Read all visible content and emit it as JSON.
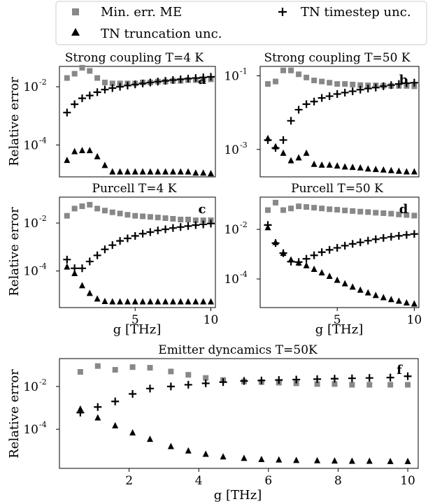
{
  "legend": {
    "entries": [
      {
        "label": "Min. err. ME",
        "marker": "square",
        "color": "#888888"
      },
      {
        "label": "TN timestep unc.",
        "marker": "plus",
        "color": "#000000"
      },
      {
        "label": "TN truncation unc.",
        "marker": "triangle",
        "color": "#000000"
      }
    ]
  },
  "chart_data": [
    {
      "type": "scatter",
      "panel_label": "a",
      "title": "Strong coupling T=4 K",
      "xlabel": "",
      "ylabel": "Relative error",
      "yscale": "log",
      "xlim": [
        0,
        10.3
      ],
      "ylim": [
        8e-06,
        0.05
      ],
      "xticks": [],
      "yticks": [
        {
          "v": 0.0001,
          "exp": "-4"
        },
        {
          "v": 0.01,
          "exp": "-2"
        }
      ],
      "x": [
        0.5,
        1.0,
        1.5,
        2.0,
        2.5,
        3.0,
        3.5,
        4.0,
        4.5,
        5.0,
        5.5,
        6.0,
        6.5,
        7.0,
        7.5,
        8.0,
        8.5,
        9.0,
        9.5,
        10.0
      ],
      "series": [
        {
          "name": "Min. err. ME",
          "marker": "square",
          "color": "#888888",
          "values": [
            0.02,
            0.028,
            0.045,
            0.035,
            0.02,
            0.014,
            0.013,
            0.013,
            0.013,
            0.013,
            0.014,
            0.014,
            0.015,
            0.015,
            0.016,
            0.016,
            0.017,
            0.017,
            0.017,
            0.018
          ]
        },
        {
          "name": "TN timestep unc.",
          "marker": "plus",
          "color": "#000000",
          "values": [
            0.0013,
            0.0025,
            0.004,
            0.005,
            0.0065,
            0.008,
            0.009,
            0.01,
            0.011,
            0.012,
            0.013,
            0.014,
            0.015,
            0.016,
            0.017,
            0.018,
            0.019,
            0.02,
            0.021,
            0.022
          ]
        },
        {
          "name": "TN truncation unc.",
          "marker": "triangle",
          "color": "#000000",
          "values": [
            3e-05,
            6e-05,
            6.5e-05,
            6.5e-05,
            4e-05,
            2e-05,
            1.2e-05,
            1.2e-05,
            1.2e-05,
            1.2e-05,
            1.2e-05,
            1.2e-05,
            1.2e-05,
            1.2e-05,
            1.2e-05,
            1.2e-05,
            1.2e-05,
            1.1e-05,
            1.1e-05,
            1.05e-05
          ]
        }
      ]
    },
    {
      "type": "scatter",
      "panel_label": "b",
      "title": "Strong coupling T=50 K",
      "xlabel": "",
      "ylabel": "",
      "yscale": "log",
      "xlim": [
        0,
        10.3
      ],
      "ylim": [
        0.00018,
        0.18
      ],
      "xticks": [],
      "yticks": [
        {
          "v": 0.001,
          "exp": "-3"
        },
        {
          "v": 0.1,
          "exp": "-1"
        }
      ],
      "x": [
        0.5,
        1.0,
        1.5,
        2.0,
        2.5,
        3.0,
        3.5,
        4.0,
        4.5,
        5.0,
        5.5,
        6.0,
        6.5,
        7.0,
        7.5,
        8.0,
        8.5,
        9.0,
        9.5,
        10.0
      ],
      "series": [
        {
          "name": "Min. err. ME",
          "marker": "square",
          "color": "#888888",
          "values": [
            0.06,
            0.07,
            0.14,
            0.14,
            0.11,
            0.09,
            0.075,
            0.07,
            0.065,
            0.06,
            0.06,
            0.058,
            0.056,
            0.055,
            0.055,
            0.054,
            0.053,
            0.053,
            0.053,
            0.052
          ]
        },
        {
          "name": "TN timestep unc.",
          "marker": "plus",
          "color": "#000000",
          "values": [
            0.0018,
            0.0011,
            0.0018,
            0.006,
            0.012,
            0.017,
            0.02,
            0.025,
            0.028,
            0.032,
            0.035,
            0.038,
            0.042,
            0.045,
            0.048,
            0.052,
            0.056,
            0.06,
            0.063,
            0.065
          ]
        },
        {
          "name": "TN truncation unc.",
          "marker": "triangle",
          "color": "#000000",
          "values": [
            0.002,
            0.0012,
            0.0008,
            0.0005,
            0.0006,
            0.0008,
            0.0004,
            0.00038,
            0.00038,
            0.00036,
            0.00034,
            0.00033,
            0.00032,
            0.0003,
            0.00029,
            0.00028,
            0.00027,
            0.00026,
            0.00025,
            0.00025
          ]
        }
      ]
    },
    {
      "type": "scatter",
      "panel_label": "c",
      "title": "Purcell T=4 K",
      "xlabel": "g [THz]",
      "ylabel": "Relative error",
      "yscale": "log",
      "xlim": [
        0,
        10.3
      ],
      "ylim": [
        3e-06,
        0.12
      ],
      "xticks": [
        {
          "v": 5,
          "label": "5"
        },
        {
          "v": 10,
          "label": "10"
        }
      ],
      "yticks": [
        {
          "v": 0.0001,
          "exp": "-4"
        },
        {
          "v": 0.01,
          "exp": "-2"
        }
      ],
      "x": [
        0.5,
        1.0,
        1.5,
        2.0,
        2.5,
        3.0,
        3.5,
        4.0,
        4.5,
        5.0,
        5.5,
        6.0,
        6.5,
        7.0,
        7.5,
        8.0,
        8.5,
        9.0,
        9.5,
        10.0
      ],
      "series": [
        {
          "name": "Min. err. ME",
          "marker": "square",
          "color": "#888888",
          "values": [
            0.02,
            0.04,
            0.05,
            0.058,
            0.04,
            0.033,
            0.028,
            0.025,
            0.022,
            0.02,
            0.019,
            0.018,
            0.017,
            0.016,
            0.015,
            0.014,
            0.014,
            0.013,
            0.013,
            0.013
          ]
        },
        {
          "name": "TN timestep unc.",
          "marker": "plus",
          "color": "#000000",
          "values": [
            0.0003,
            0.00013,
            0.00013,
            0.00025,
            0.00045,
            0.0008,
            0.0012,
            0.0018,
            0.0023,
            0.0029,
            0.0036,
            0.0042,
            0.0049,
            0.0055,
            0.0062,
            0.0068,
            0.0075,
            0.0082,
            0.0088,
            0.0095
          ]
        },
        {
          "name": "TN truncation unc.",
          "marker": "triangle",
          "color": "#000000",
          "values": [
            0.00015,
            8e-05,
            2.5e-05,
            1.2e-05,
            7e-06,
            5.5e-06,
            5.3e-06,
            5.3e-06,
            5.3e-06,
            5.3e-06,
            5.3e-06,
            5.3e-06,
            5.3e-06,
            5.3e-06,
            5.3e-06,
            5.3e-06,
            5.3e-06,
            5.3e-06,
            5.3e-06,
            5.3e-06
          ]
        }
      ]
    },
    {
      "type": "scatter",
      "panel_label": "d",
      "title": "Purcell T=50 K",
      "xlabel": "g [THz]",
      "ylabel": "",
      "yscale": "log",
      "xlim": [
        0,
        10.3
      ],
      "ylim": [
        7e-06,
        0.2
      ],
      "xticks": [
        {
          "v": 5,
          "label": "5"
        },
        {
          "v": 10,
          "label": "10"
        }
      ],
      "yticks": [
        {
          "v": 0.0001,
          "exp": "-4"
        },
        {
          "v": 0.01,
          "exp": "-2"
        }
      ],
      "x": [
        0.5,
        1.0,
        1.5,
        2.0,
        2.5,
        3.0,
        3.5,
        4.0,
        4.5,
        5.0,
        5.5,
        6.0,
        6.5,
        7.0,
        7.5,
        8.0,
        8.5,
        9.0,
        9.5,
        10.0
      ],
      "series": [
        {
          "name": "Min. err. ME",
          "marker": "square",
          "color": "#888888",
          "values": [
            0.06,
            0.12,
            0.06,
            0.07,
            0.085,
            0.08,
            0.075,
            0.07,
            0.065,
            0.062,
            0.058,
            0.055,
            0.052,
            0.05,
            0.047,
            0.045,
            0.043,
            0.04,
            0.038,
            0.036
          ]
        },
        {
          "name": "TN timestep unc.",
          "marker": "plus",
          "color": "#000000",
          "values": [
            0.015,
            0.0028,
            0.0011,
            0.0005,
            0.00048,
            0.00065,
            0.0009,
            0.0012,
            0.0015,
            0.0018,
            0.0022,
            0.0026,
            0.003,
            0.0035,
            0.004,
            0.0045,
            0.005,
            0.0055,
            0.006,
            0.0065
          ]
        },
        {
          "name": "TN truncation unc.",
          "marker": "triangle",
          "color": "#000000",
          "values": [
            0.012,
            0.003,
            0.0011,
            0.0006,
            0.00045,
            0.00035,
            0.00025,
            0.00018,
            0.00013,
            9e-05,
            6.5e-05,
            4.8e-05,
            3.6e-05,
            2.8e-05,
            2.2e-05,
            1.8e-05,
            1.5e-05,
            1.3e-05,
            1.1e-05,
            1e-05
          ]
        }
      ]
    },
    {
      "type": "scatter",
      "panel_label": "f",
      "title": "Emitter dyncamics T=50K",
      "xlabel": "g [THz]",
      "ylabel": "Relative error",
      "yscale": "log",
      "xlim": [
        0,
        10.3
      ],
      "ylim": [
        1.5e-06,
        0.2
      ],
      "xticks": [
        {
          "v": 2,
          "label": "2"
        },
        {
          "v": 4,
          "label": "4"
        },
        {
          "v": 6,
          "label": "6"
        },
        {
          "v": 8,
          "label": "8"
        },
        {
          "v": 10,
          "label": "10"
        }
      ],
      "yticks": [
        {
          "v": 0.0001,
          "exp": "-4"
        },
        {
          "v": 0.01,
          "exp": "-2"
        }
      ],
      "x": [
        0.6,
        1.1,
        1.6,
        2.1,
        2.6,
        3.2,
        3.7,
        4.2,
        4.7,
        5.3,
        5.8,
        6.3,
        6.8,
        7.4,
        7.9,
        8.4,
        8.9,
        9.5,
        10.0
      ],
      "series": [
        {
          "name": "Min. err. ME",
          "marker": "square",
          "color": "#888888",
          "values": [
            0.048,
            0.09,
            0.06,
            0.08,
            0.075,
            0.05,
            0.035,
            0.025,
            0.02,
            0.017,
            0.016,
            0.015,
            0.014,
            0.013,
            0.013,
            0.012,
            0.012,
            0.012,
            0.012
          ]
        },
        {
          "name": "TN timestep unc.",
          "marker": "plus",
          "color": "#000000",
          "values": [
            0.0006,
            0.0011,
            0.002,
            0.0045,
            0.008,
            0.01,
            0.012,
            0.014,
            0.016,
            0.018,
            0.019,
            0.02,
            0.021,
            0.022,
            0.023,
            0.024,
            0.025,
            0.026,
            0.03
          ]
        },
        {
          "name": "TN truncation unc.",
          "marker": "triangle",
          "color": "#000000",
          "values": [
            0.0009,
            0.00035,
            0.00015,
            7e-05,
            3.5e-05,
            1.6e-05,
            1e-05,
            7e-06,
            5.3e-06,
            4.5e-06,
            4e-06,
            3.8e-06,
            3.6e-06,
            3.5e-06,
            3.4e-06,
            3.3e-06,
            3.3e-06,
            3.2e-06,
            3.2e-06
          ]
        }
      ]
    }
  ]
}
